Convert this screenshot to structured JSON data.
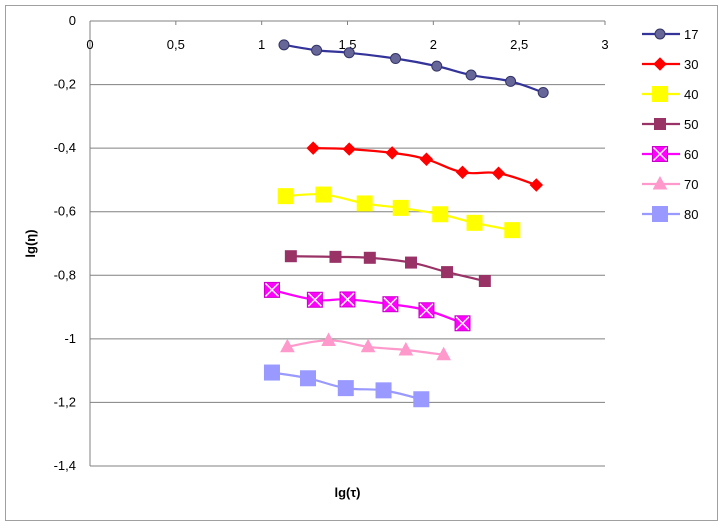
{
  "chart_data": {
    "type": "line",
    "title": "",
    "xlabel": "lg(τ)",
    "ylabel": "lg(η)",
    "xlim": [
      0,
      3
    ],
    "ylim": [
      -1.4,
      0
    ],
    "x_ticks": [
      "0",
      "0,5",
      "1",
      "1,5",
      "2",
      "2,5",
      "3"
    ],
    "y_ticks": [
      "0",
      "-0,2",
      "-0,4",
      "-0,6",
      "-0,8",
      "-1",
      "-1,2",
      "-1,4"
    ],
    "grid": "horizontal",
    "legend_position": "right",
    "series": [
      {
        "name": "17",
        "color": "#333399",
        "marker": "circle",
        "x": [
          1.13,
          1.32,
          1.51,
          1.78,
          2.02,
          2.22,
          2.45,
          2.64
        ],
        "y": [
          -0.075,
          -0.092,
          -0.1,
          -0.118,
          -0.142,
          -0.17,
          -0.19,
          -0.225
        ]
      },
      {
        "name": "30",
        "color": "#ff0000",
        "marker": "diamond",
        "x": [
          1.3,
          1.51,
          1.76,
          1.96,
          2.17,
          2.38,
          2.6
        ],
        "y": [
          -0.4,
          -0.403,
          -0.415,
          -0.435,
          -0.476,
          -0.479,
          -0.516
        ]
      },
      {
        "name": "40",
        "color": "#ffff00",
        "marker": "square",
        "x": [
          1.14,
          1.36,
          1.6,
          1.81,
          2.04,
          2.24,
          2.46
        ],
        "y": [
          -0.551,
          -0.546,
          -0.574,
          -0.588,
          -0.608,
          -0.635,
          -0.658
        ]
      },
      {
        "name": "50",
        "color": "#993366",
        "marker": "square-small",
        "x": [
          1.17,
          1.43,
          1.63,
          1.87,
          2.08,
          2.3
        ],
        "y": [
          -0.74,
          -0.742,
          -0.745,
          -0.76,
          -0.79,
          -0.818
        ]
      },
      {
        "name": "60",
        "color": "#ff00ff",
        "marker": "x-square",
        "x": [
          1.06,
          1.31,
          1.5,
          1.75,
          1.96,
          2.17
        ],
        "y": [
          -0.846,
          -0.877,
          -0.876,
          -0.891,
          -0.91,
          -0.951
        ]
      },
      {
        "name": "70",
        "color": "#ff99cc",
        "marker": "triangle",
        "x": [
          1.15,
          1.39,
          1.62,
          1.84,
          2.06
        ],
        "y": [
          -1.025,
          -1.005,
          -1.025,
          -1.035,
          -1.05
        ]
      },
      {
        "name": "80",
        "color": "#9999ff",
        "marker": "square",
        "x": [
          1.06,
          1.27,
          1.49,
          1.71,
          1.93
        ],
        "y": [
          -1.106,
          -1.124,
          -1.155,
          -1.162,
          -1.19
        ]
      }
    ]
  }
}
